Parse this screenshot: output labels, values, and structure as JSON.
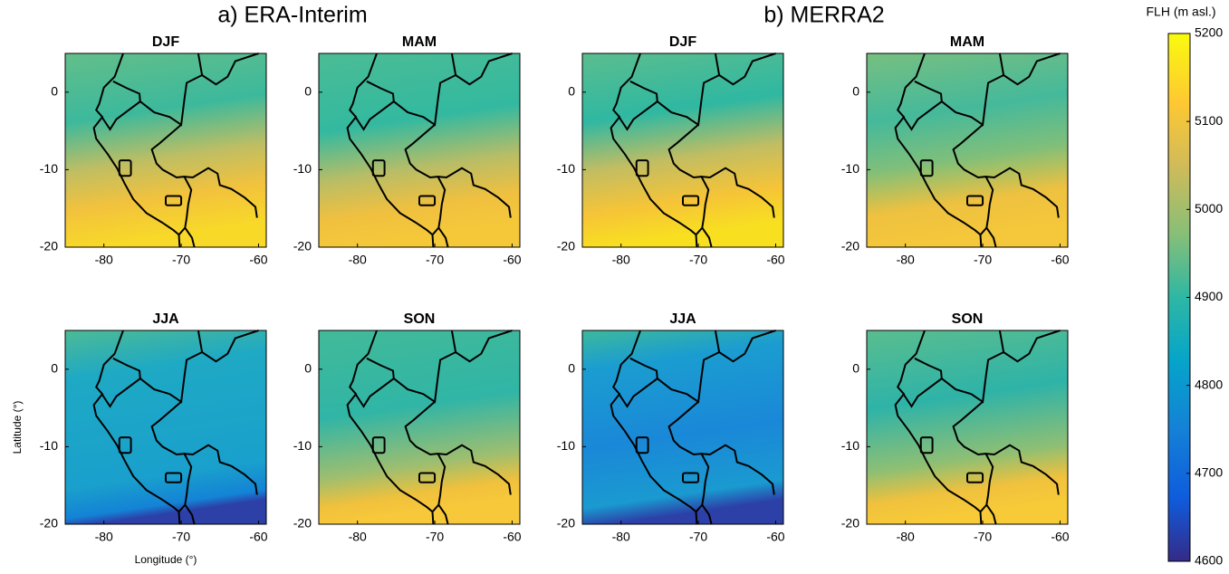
{
  "groups": [
    {
      "title": "a) ERA-Interim"
    },
    {
      "title": "b) MERRA2"
    }
  ],
  "colorbar": {
    "label": "FLH (m asl.)",
    "lim": [
      4600,
      5200
    ],
    "ticks": [
      4600,
      4700,
      4800,
      4900,
      5000,
      5100,
      5200
    ]
  },
  "chart_data": [
    {
      "type": "map",
      "title": "DJF",
      "xlim": [
        -85,
        -59
      ],
      "ylim": [
        -20,
        5
      ],
      "xticks": [
        -80,
        -70,
        -60
      ],
      "yticks": [
        0,
        -10,
        -20
      ]
    },
    {
      "type": "map",
      "title": "MAM",
      "xlim": [
        -85,
        -59
      ],
      "ylim": [
        -20,
        5
      ],
      "xticks": [
        -80,
        -70,
        -60
      ],
      "yticks": [
        0,
        -10,
        -20
      ]
    },
    {
      "type": "map",
      "title": "JJA",
      "xlim": [
        -85,
        -59
      ],
      "ylim": [
        -20,
        5
      ],
      "xticks": [
        -80,
        -70,
        -60
      ],
      "yticks": [
        0,
        -10,
        -20
      ],
      "xlabel": "Longitude (°)",
      "ylabel": "Latitude (°)"
    },
    {
      "type": "map",
      "title": "SON",
      "xlim": [
        -85,
        -59
      ],
      "ylim": [
        -20,
        5
      ],
      "xticks": [
        -80,
        -70,
        -60
      ],
      "yticks": [
        0,
        -10,
        -20
      ]
    },
    {
      "type": "map",
      "title": "DJF",
      "xlim": [
        -85,
        -59
      ],
      "ylim": [
        -20,
        5
      ],
      "xticks": [
        -80,
        -70,
        -60
      ],
      "yticks": [
        0,
        -10,
        -20
      ]
    },
    {
      "type": "map",
      "title": "MAM",
      "xlim": [
        -85,
        -59
      ],
      "ylim": [
        -20,
        5
      ],
      "xticks": [
        -80,
        -70,
        -60
      ],
      "yticks": [
        0,
        -10,
        -20
      ]
    },
    {
      "type": "map",
      "title": "JJA",
      "xlim": [
        -85,
        -59
      ],
      "ylim": [
        -20,
        5
      ],
      "xticks": [
        -80,
        -70,
        -60
      ],
      "yticks": [
        0,
        -10,
        -20
      ]
    },
    {
      "type": "map",
      "title": "SON",
      "xlim": [
        -85,
        -59
      ],
      "ylim": [
        -20,
        5
      ],
      "xticks": [
        -80,
        -70,
        -60
      ],
      "yticks": [
        0,
        -10,
        -20
      ]
    }
  ]
}
